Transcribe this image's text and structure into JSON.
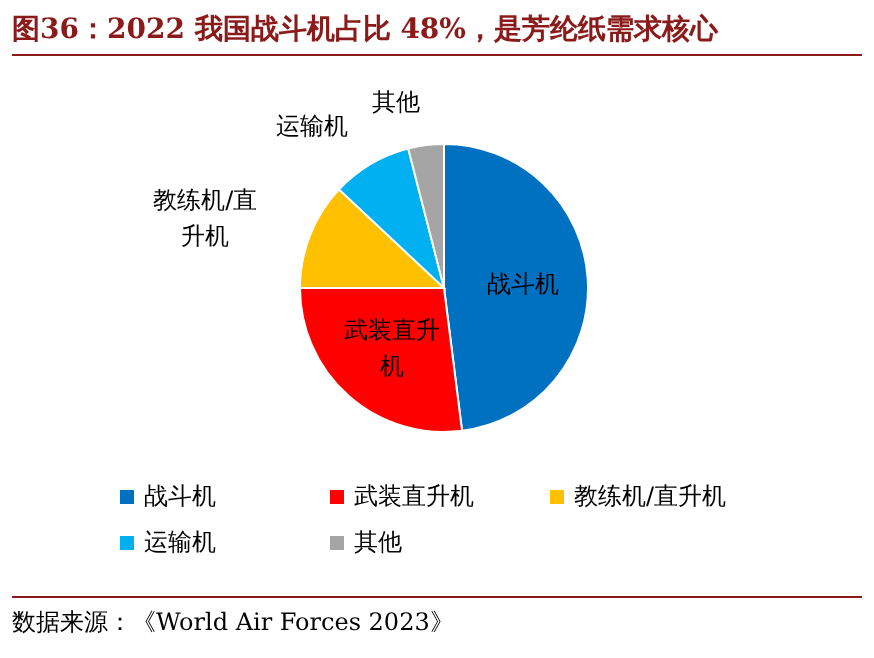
{
  "chart_data": {
    "type": "pie",
    "title": "图36：2022 我国战斗机占比 48%，是芳纶纸需求核心",
    "categories": [
      "战斗机",
      "武装直升机",
      "教练机/直升机",
      "运输机",
      "其他"
    ],
    "values": [
      48,
      27,
      12,
      9,
      4
    ],
    "colors": [
      "#0070c0",
      "#ff0000",
      "#ffc000",
      "#00b0f0",
      "#a5a5a5"
    ],
    "legend": "bottom",
    "annotations": [
      "数据来源：《World Air Forces 2023》"
    ]
  }
}
